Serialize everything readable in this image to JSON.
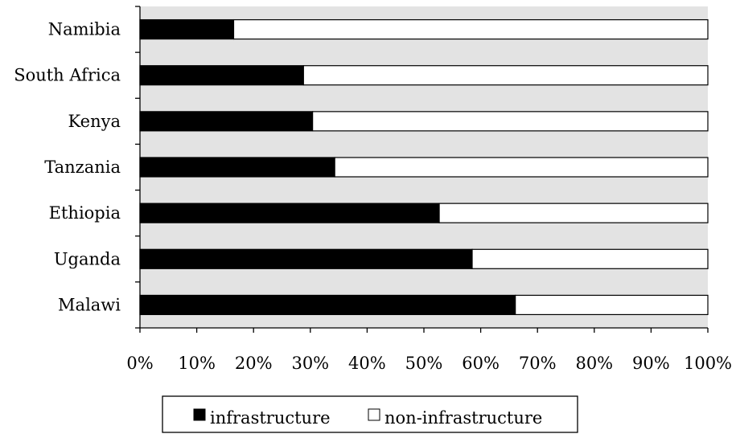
{
  "chart_data": {
    "type": "bar",
    "orientation": "horizontal",
    "stacked": "percent",
    "categories": [
      "Namibia",
      "South Africa",
      "Kenya",
      "Tanzania",
      "Ethiopia",
      "Uganda",
      "Malawi"
    ],
    "series": [
      {
        "name": "infrastructure",
        "values": [
          16.5,
          28.8,
          30.4,
          34.3,
          52.7,
          58.5,
          66.1
        ],
        "color": "#000000"
      },
      {
        "name": "non-infrastructure",
        "values": [
          83.5,
          71.2,
          69.6,
          65.7,
          47.3,
          41.5,
          33.9
        ],
        "color": "#ffffff"
      }
    ],
    "xlim": [
      0,
      100
    ],
    "x_ticks": [
      "0%",
      "10%",
      "20%",
      "30%",
      "40%",
      "50%",
      "60%",
      "70%",
      "80%",
      "90%",
      "100%"
    ],
    "plot_background": "#e3e3e3",
    "grid": false,
    "legend_position": "bottom"
  }
}
